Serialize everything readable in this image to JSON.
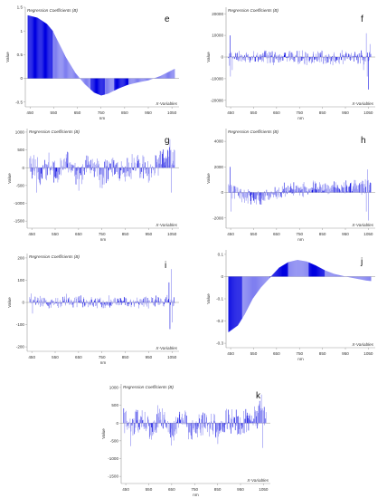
{
  "chart_data": [
    {
      "id": "e",
      "type": "bar",
      "letter": "e",
      "title": "Regression Coefficients (B)",
      "xlabel": "nm",
      "ylabel": "Value",
      "x_variable_label": "X-Variables",
      "xlim": [
        430,
        1080
      ],
      "ylim": [
        -0.6,
        1.5
      ],
      "yticks": [
        -0.5,
        0,
        0.5,
        1,
        1.5
      ],
      "yticklabels": [
        "-0.5",
        "0",
        "0.5",
        "1",
        "1.5"
      ],
      "xticks": [
        450,
        550,
        650,
        750,
        850,
        950,
        1050
      ],
      "xticklabels": [
        "450",
        "550",
        "650",
        "750",
        "850",
        "950",
        "1050"
      ],
      "profile": "smooth",
      "keypoints": [
        [
          440,
          1.33
        ],
        [
          480,
          1.28
        ],
        [
          520,
          1.15
        ],
        [
          545,
          1.0
        ],
        [
          570,
          0.75
        ],
        [
          600,
          0.45
        ],
        [
          640,
          0.12
        ],
        [
          680,
          -0.12
        ],
        [
          720,
          -0.3
        ],
        [
          750,
          -0.36
        ],
        [
          780,
          -0.32
        ],
        [
          820,
          -0.22
        ],
        [
          860,
          -0.14
        ],
        [
          900,
          -0.09
        ],
        [
          950,
          -0.04
        ],
        [
          1000,
          0.05
        ],
        [
          1040,
          0.15
        ],
        [
          1060,
          0.2
        ]
      ],
      "noise": 0,
      "segments": [
        [
          430,
          545,
          "dark"
        ],
        [
          545,
          705,
          "light"
        ],
        [
          705,
          765,
          "dark"
        ],
        [
          765,
          805,
          "light"
        ],
        [
          805,
          865,
          "dark"
        ],
        [
          865,
          1080,
          "light"
        ]
      ]
    },
    {
      "id": "f",
      "type": "bar",
      "letter": "f",
      "title": "Regression Coefficients (B)",
      "xlabel": "nm",
      "ylabel": "Value",
      "x_variable_label": "X-Variables",
      "xlim": [
        430,
        1080
      ],
      "ylim": [
        -23000,
        23000
      ],
      "yticks": [
        -20000,
        -10000,
        0,
        10000,
        20000
      ],
      "yticklabels": [
        "-20000",
        "-10000",
        "0",
        "10000",
        "20000"
      ],
      "xticks": [
        450,
        550,
        650,
        750,
        850,
        950,
        1050
      ],
      "xticklabels": [
        "450",
        "550",
        "650",
        "750",
        "850",
        "950",
        "1050"
      ],
      "profile": "noise",
      "keypoints": [
        [
          440,
          -500
        ],
        [
          1060,
          0
        ]
      ],
      "noise": 2600,
      "spikes": [
        [
          445,
          10000
        ],
        [
          447,
          -9000
        ],
        [
          455,
          -6000
        ],
        [
          1028,
          -6000
        ],
        [
          1040,
          11000
        ],
        [
          1044,
          -9000
        ],
        [
          1050,
          -15000
        ],
        [
          1055,
          6000
        ]
      ],
      "segments": []
    },
    {
      "id": "g",
      "type": "bar",
      "letter": "g",
      "title": "Regression Coefficients (B)",
      "xlabel": "nm",
      "ylabel": "Value",
      "x_variable_label": "X-Variables",
      "xlim": [
        430,
        1080
      ],
      "ylim": [
        -1700,
        1100
      ],
      "yticks": [
        -1500,
        -1000,
        -500,
        0,
        500,
        1000
      ],
      "yticklabels": [
        "-1500",
        "-1000",
        "-500",
        "0",
        "500",
        "1000"
      ],
      "xticks": [
        450,
        550,
        650,
        750,
        850,
        950,
        1050
      ],
      "xticklabels": [
        "450",
        "550",
        "650",
        "750",
        "850",
        "950",
        "1050"
      ],
      "profile": "noise",
      "keypoints": [
        [
          440,
          0
        ],
        [
          480,
          -150
        ],
        [
          520,
          100
        ],
        [
          560,
          -200
        ],
        [
          600,
          250
        ],
        [
          650,
          -350
        ],
        [
          700,
          150
        ],
        [
          750,
          -250
        ],
        [
          800,
          50
        ],
        [
          850,
          -200
        ],
        [
          900,
          150
        ],
        [
          950,
          -200
        ],
        [
          1000,
          250
        ],
        [
          1050,
          300
        ]
      ],
      "noise": 300,
      "spikes": [
        [
          1040,
          800
        ],
        [
          1046,
          -700
        ],
        [
          470,
          -700
        ]
      ],
      "segments": []
    },
    {
      "id": "h",
      "type": "bar",
      "letter": "h",
      "title": "Regression Coefficients (B)",
      "xlabel": "nm",
      "ylabel": "Value",
      "x_variable_label": "X-Variables",
      "xlim": [
        430,
        1080
      ],
      "ylim": [
        -2800,
        5000
      ],
      "yticks": [
        -2000,
        0,
        2000,
        4000
      ],
      "yticklabels": [
        "-2000",
        "0",
        "2000",
        "4000"
      ],
      "xticks": [
        450,
        550,
        650,
        750,
        850,
        950,
        1050
      ],
      "xticklabels": [
        "450",
        "550",
        "650",
        "750",
        "850",
        "950",
        "1050"
      ],
      "profile": "noise",
      "keypoints": [
        [
          440,
          300
        ],
        [
          500,
          -300
        ],
        [
          560,
          -500
        ],
        [
          620,
          -200
        ],
        [
          700,
          200
        ],
        [
          760,
          300
        ],
        [
          820,
          400
        ],
        [
          900,
          300
        ],
        [
          950,
          400
        ],
        [
          1000,
          500
        ],
        [
          1050,
          400
        ]
      ],
      "noise": 450,
      "spikes": [
        [
          445,
          2000
        ],
        [
          450,
          -1500
        ],
        [
          1040,
          -1500
        ],
        [
          1046,
          1800
        ],
        [
          1050,
          -2200
        ]
      ],
      "segments": []
    },
    {
      "id": "i",
      "type": "bar",
      "letter": "i",
      "title": "Regression Coefficients (B)",
      "xlabel": "nm",
      "ylabel": "Value",
      "x_variable_label": "X-Variables",
      "xlim": [
        430,
        1080
      ],
      "ylim": [
        -220,
        220
      ],
      "yticks": [
        -200,
        -100,
        0,
        100,
        200
      ],
      "yticklabels": [
        "-200",
        "-100",
        "0",
        "100",
        "200"
      ],
      "xticks": [
        450,
        550,
        650,
        750,
        850,
        950,
        1050
      ],
      "xticklabels": [
        "450",
        "550",
        "650",
        "750",
        "850",
        "950",
        "1050"
      ],
      "profile": "noise",
      "keypoints": [
        [
          440,
          10
        ],
        [
          520,
          -5
        ],
        [
          600,
          10
        ],
        [
          680,
          5
        ],
        [
          760,
          0
        ],
        [
          840,
          5
        ],
        [
          920,
          0
        ],
        [
          1000,
          5
        ],
        [
          1050,
          0
        ]
      ],
      "noise": 22,
      "spikes": [
        [
          1035,
          90
        ],
        [
          1040,
          -120
        ],
        [
          1046,
          150
        ],
        [
          1050,
          -90
        ],
        [
          445,
          40
        ],
        [
          452,
          -50
        ]
      ],
      "segments": []
    },
    {
      "id": "j",
      "type": "bar",
      "letter": "j",
      "title": "",
      "xlabel": "nm",
      "ylabel": "Value",
      "x_variable_label": "X-Variables",
      "xlim": [
        430,
        1080
      ],
      "ylim": [
        -0.32,
        0.12
      ],
      "yticks": [
        -0.3,
        -0.2,
        -0.1,
        0,
        0.1
      ],
      "yticklabels": [
        "-0.3",
        "-0.2",
        "-0.1",
        "0",
        "0.1"
      ],
      "xticks": [
        450,
        550,
        650,
        750,
        850,
        950,
        1050
      ],
      "xticklabels": [
        "450",
        "550",
        "650",
        "750",
        "850",
        "950",
        "1050"
      ],
      "profile": "smooth",
      "keypoints": [
        [
          440,
          -0.25
        ],
        [
          480,
          -0.22
        ],
        [
          510,
          -0.17
        ],
        [
          545,
          -0.1
        ],
        [
          580,
          -0.05
        ],
        [
          620,
          -0.005
        ],
        [
          660,
          0.04
        ],
        [
          700,
          0.065
        ],
        [
          740,
          0.075
        ],
        [
          780,
          0.068
        ],
        [
          820,
          0.05
        ],
        [
          860,
          0.028
        ],
        [
          900,
          0.012
        ],
        [
          950,
          0.0
        ],
        [
          1000,
          -0.01
        ],
        [
          1040,
          -0.018
        ],
        [
          1060,
          -0.02
        ]
      ],
      "noise": 0,
      "segments": [
        [
          430,
          500,
          "dark"
        ],
        [
          500,
          620,
          "light"
        ],
        [
          620,
          700,
          "dark"
        ],
        [
          700,
          790,
          "light"
        ],
        [
          790,
          860,
          "dark"
        ],
        [
          860,
          1080,
          "light"
        ]
      ]
    },
    {
      "id": "k",
      "type": "bar",
      "letter": "k",
      "title": "Regression Coefficients (B)",
      "xlabel": "nm",
      "ylabel": "Value",
      "x_variable_label": "X-Variables",
      "xlim": [
        430,
        1080
      ],
      "ylim": [
        -1700,
        1100
      ],
      "yticks": [
        -1500,
        -1000,
        -500,
        0,
        500,
        1000
      ],
      "yticklabels": [
        "-1500",
        "-1000",
        "-500",
        "0",
        "500",
        "1000"
      ],
      "xticks": [
        450,
        550,
        650,
        750,
        850,
        950,
        1050
      ],
      "xticklabels": [
        "450",
        "550",
        "650",
        "750",
        "850",
        "950",
        "1050"
      ],
      "profile": "noise",
      "keypoints": [
        [
          440,
          0
        ],
        [
          480,
          -100
        ],
        [
          520,
          150
        ],
        [
          560,
          -250
        ],
        [
          600,
          250
        ],
        [
          650,
          -300
        ],
        [
          700,
          150
        ],
        [
          750,
          -250
        ],
        [
          800,
          50
        ],
        [
          850,
          -200
        ],
        [
          900,
          150
        ],
        [
          950,
          -200
        ],
        [
          1000,
          200
        ],
        [
          1050,
          300
        ]
      ],
      "noise": 300,
      "spikes": [
        [
          1040,
          800
        ],
        [
          1046,
          -700
        ],
        [
          470,
          -650
        ]
      ],
      "segments": []
    }
  ],
  "colors": {
    "dark": "#0000e0",
    "light": "#7f7ff0",
    "axis": "#9a9a9a",
    "text": "#333333",
    "zero": "#777777"
  }
}
